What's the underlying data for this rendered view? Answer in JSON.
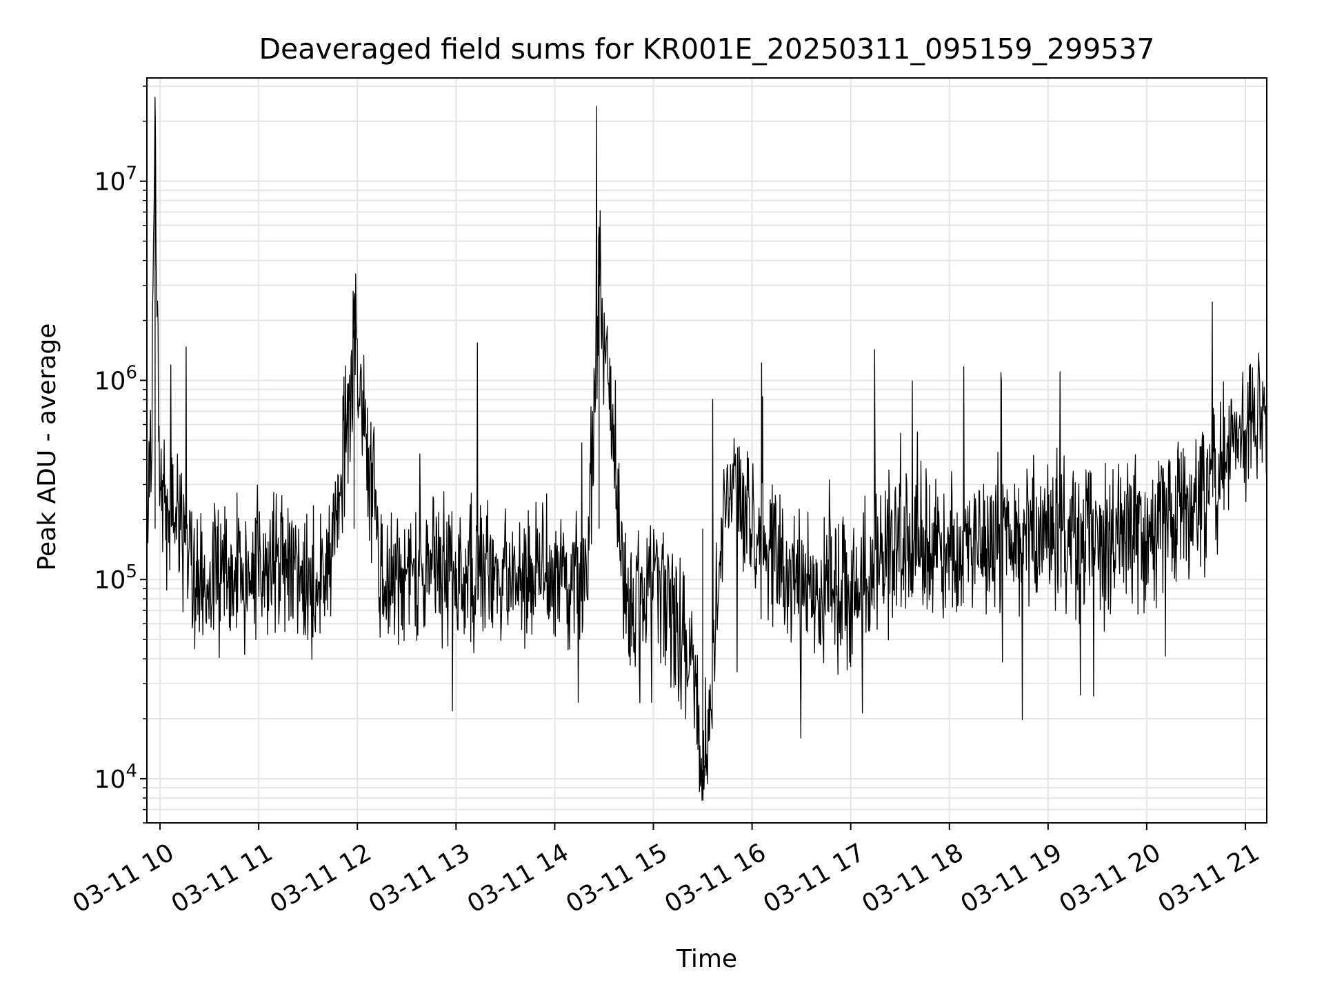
{
  "chart_data": {
    "type": "line",
    "title": "Deaveraged field sums for KR001E_20250311_095159_299537",
    "xlabel": "Time",
    "ylabel": "Peak ADU - average",
    "y_scale": "log",
    "ylim": [
      6000,
      33000000
    ],
    "xlim": [
      "2025-03-11T09:52:00",
      "2025-03-11T21:13:00"
    ],
    "x_ticks": [
      {
        "t": "2025-03-11T10:00:00",
        "label": "03-11 10"
      },
      {
        "t": "2025-03-11T11:00:00",
        "label": "03-11 11"
      },
      {
        "t": "2025-03-11T12:00:00",
        "label": "03-11 12"
      },
      {
        "t": "2025-03-11T13:00:00",
        "label": "03-11 13"
      },
      {
        "t": "2025-03-11T14:00:00",
        "label": "03-11 14"
      },
      {
        "t": "2025-03-11T15:00:00",
        "label": "03-11 15"
      },
      {
        "t": "2025-03-11T16:00:00",
        "label": "03-11 16"
      },
      {
        "t": "2025-03-11T17:00:00",
        "label": "03-11 17"
      },
      {
        "t": "2025-03-11T18:00:00",
        "label": "03-11 18"
      },
      {
        "t": "2025-03-11T19:00:00",
        "label": "03-11 19"
      },
      {
        "t": "2025-03-11T20:00:00",
        "label": "03-11 20"
      },
      {
        "t": "2025-03-11T21:00:00",
        "label": "03-11 21"
      }
    ],
    "y_ticks": [
      {
        "value": 10000,
        "base": "10",
        "exp": "4"
      },
      {
        "value": 100000,
        "base": "10",
        "exp": "5"
      },
      {
        "value": 1000000,
        "base": "10",
        "exp": "6"
      },
      {
        "value": 10000000,
        "base": "10",
        "exp": "7"
      }
    ],
    "grid": true,
    "line_color": "#000000",
    "series": [
      {
        "x": [
          "2025-03-11T09:52:00",
          "2025-03-11T09:55:00",
          "2025-03-11T09:57:00",
          "2025-03-11T10:00:00",
          "2025-03-11T10:10:00",
          "2025-03-11T10:20:00",
          "2025-03-11T10:25:00",
          "2025-03-11T10:40:00",
          "2025-03-11T11:00:00",
          "2025-03-11T11:20:00",
          "2025-03-11T11:40:00",
          "2025-03-11T11:55:00",
          "2025-03-11T11:58:00",
          "2025-03-11T12:15:00",
          "2025-03-11T12:40:00",
          "2025-03-11T13:00:00",
          "2025-03-11T13:30:00",
          "2025-03-11T14:00:00",
          "2025-03-11T14:20:00",
          "2025-03-11T14:27:00",
          "2025-03-11T14:45:00",
          "2025-03-11T15:00:00",
          "2025-03-11T15:15:00",
          "2025-03-11T15:25:00",
          "2025-03-11T15:30:00",
          "2025-03-11T15:45:00",
          "2025-03-11T16:00:00",
          "2025-03-11T16:20:00",
          "2025-03-11T16:40:00",
          "2025-03-11T17:00:00",
          "2025-03-11T17:30:00",
          "2025-03-11T18:00:00",
          "2025-03-11T18:30:00",
          "2025-03-11T19:00:00",
          "2025-03-11T19:30:00",
          "2025-03-11T20:00:00",
          "2025-03-11T20:30:00",
          "2025-03-11T20:50:00",
          "2025-03-11T21:00:00",
          "2025-03-11T21:10:00"
        ],
        "values": [
          300000,
          700000,
          23000000,
          250000,
          200000,
          110000,
          95000,
          100000,
          110000,
          120000,
          100000,
          600000,
          1800000,
          110000,
          100000,
          100000,
          105000,
          100000,
          110000,
          3400000,
          65000,
          95000,
          60000,
          35000,
          9000,
          300000,
          180000,
          110000,
          90000,
          85000,
          150000,
          140000,
          160000,
          170000,
          160000,
          170000,
          220000,
          450000,
          550000,
          650000
        ]
      }
    ]
  }
}
